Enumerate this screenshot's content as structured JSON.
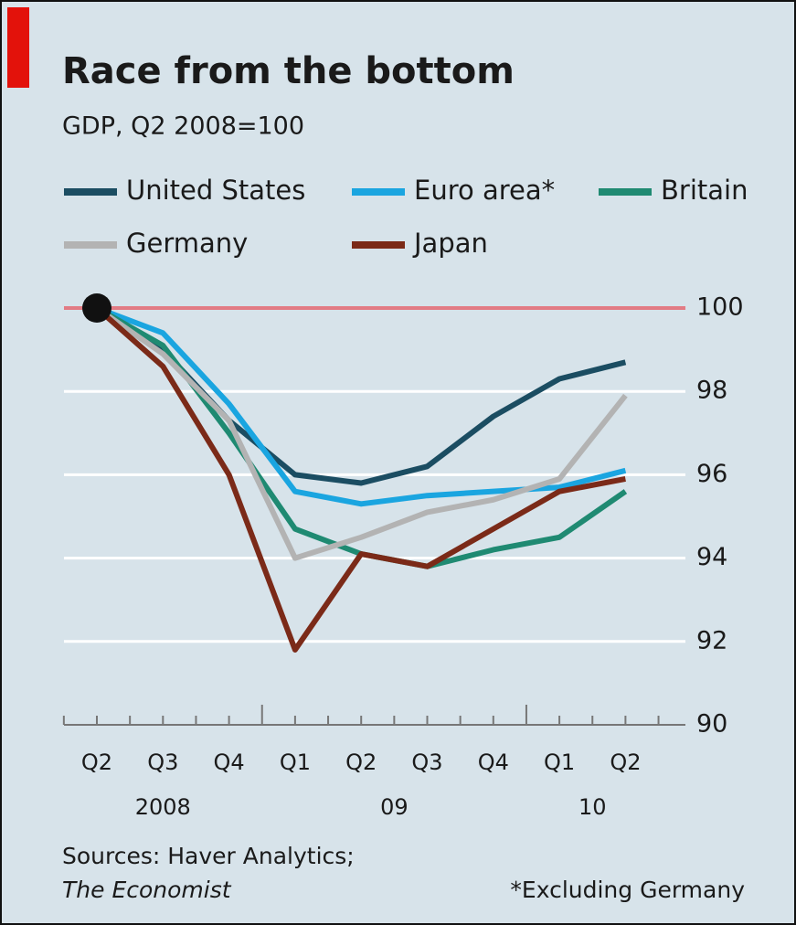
{
  "chart_data": {
    "type": "line",
    "title": "Race from the bottom",
    "subtitle": "GDP, Q2 2008=100",
    "categories": [
      "Q2",
      "Q3",
      "Q4",
      "Q1",
      "Q2",
      "Q3",
      "Q4",
      "Q1",
      "Q2"
    ],
    "years": [
      "2008",
      "09",
      "10"
    ],
    "series": [
      {
        "name": "United States",
        "color": "#1b4d62",
        "values": [
          100,
          99.0,
          97.3,
          96.0,
          95.8,
          96.2,
          97.4,
          98.3,
          98.7
        ]
      },
      {
        "name": "Euro area*",
        "color": "#1aa5e0",
        "values": [
          100,
          99.4,
          97.7,
          95.6,
          95.3,
          95.5,
          95.6,
          95.7,
          96.1
        ]
      },
      {
        "name": "Britain",
        "color": "#1f8a72",
        "values": [
          100,
          99.1,
          97.0,
          94.7,
          94.1,
          93.8,
          94.2,
          94.5,
          95.6
        ]
      },
      {
        "name": "Germany",
        "color": "#b3b3b3",
        "values": [
          100,
          98.9,
          97.3,
          94.0,
          94.5,
          95.1,
          95.4,
          95.9,
          97.9
        ]
      },
      {
        "name": "Japan",
        "color": "#7b2a18",
        "values": [
          100,
          98.6,
          96.0,
          91.8,
          94.1,
          93.8,
          94.7,
          95.6,
          95.9
        ]
      }
    ],
    "ylim": [
      90,
      100
    ],
    "yticks": [
      90,
      92,
      94,
      96,
      98,
      100
    ],
    "grid": true,
    "reference_line": 100,
    "source": [
      "Sources: Haver Analytics;",
      "The Economist"
    ],
    "footnote": "*Excluding Germany"
  }
}
